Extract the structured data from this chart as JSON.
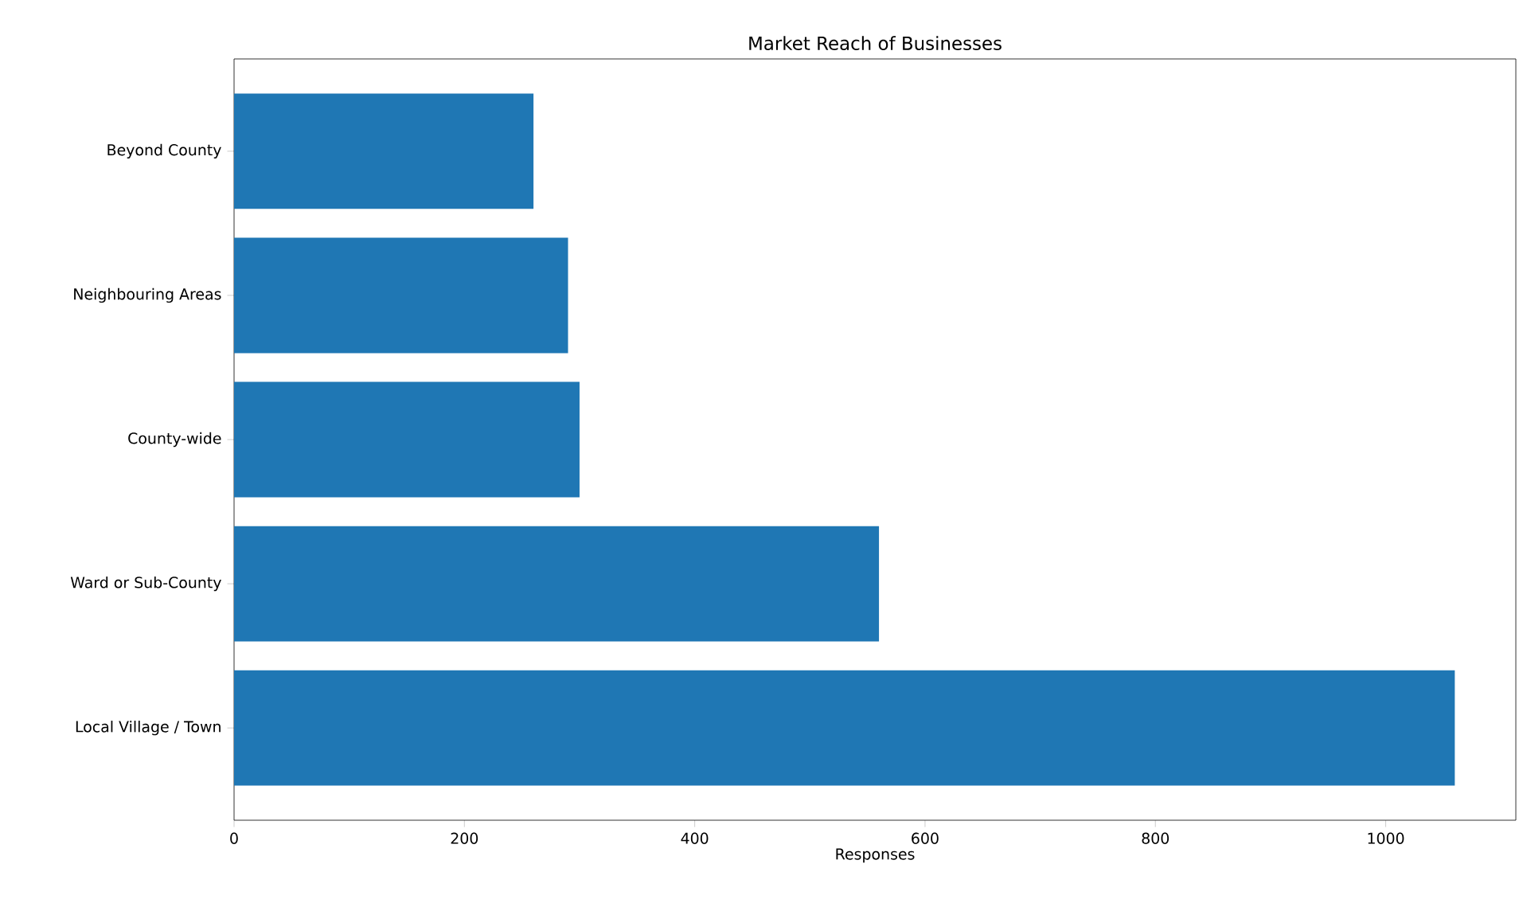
{
  "chart_data": {
    "type": "bar",
    "orientation": "horizontal",
    "title": "Market Reach of Businesses",
    "xlabel": "Responses",
    "categories": [
      "Beyond County",
      "Neighbouring Areas",
      "County-wide",
      "Ward or Sub-County",
      "Local Village / Town"
    ],
    "values": [
      260,
      290,
      300,
      560,
      1060
    ],
    "color": "#1f77b4",
    "xlim": [
      0,
      1113
    ],
    "xticks": [
      0,
      200,
      400,
      600,
      800,
      1000
    ]
  }
}
